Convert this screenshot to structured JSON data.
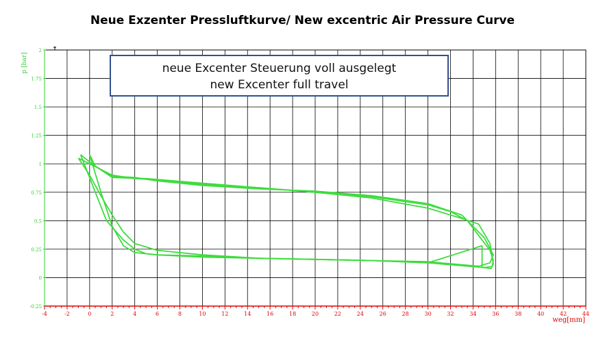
{
  "title": "Neue Exzenter Pressluftkurve/ New excentric Air Pressure Curve",
  "annotation": {
    "line1": "neue Excenter Steuerung  voll ausgelegt",
    "line2": "new Excenter full travel"
  },
  "colors": {
    "curve": "#3ddc3d",
    "axis": "#e00000",
    "ylabel": "#33cc33",
    "grid": "#000000"
  },
  "chart_data": {
    "type": "line",
    "title": "Neue Exzenter Pressluftkurve/ New excentric Air Pressure Curve",
    "xlabel": "weg[mm]",
    "ylabel": "p [bar]",
    "xlim": [
      -4,
      44
    ],
    "ylim": [
      -0.25,
      2
    ],
    "xticks": [
      "-4",
      "-2",
      "0",
      "2",
      "4",
      "6",
      "8",
      "10",
      "12",
      "14",
      "16",
      "18",
      "20",
      "22",
      "24",
      "26",
      "28",
      "30",
      "32",
      "34",
      "36",
      "38",
      "40",
      "42",
      "44"
    ],
    "yticks": [
      "-0.25",
      "0",
      "0.25",
      "0.5",
      "0.75",
      "1",
      "1.25",
      "1.5",
      "1.75",
      "2"
    ],
    "grid": true,
    "series": [
      {
        "x": [
          -1,
          0,
          1,
          2,
          4,
          6,
          10,
          15,
          20,
          25,
          30,
          32,
          33.5,
          34.8,
          35.5,
          35.8,
          35.7,
          35.2,
          34.8,
          30,
          25,
          20,
          15,
          10,
          6,
          4,
          3,
          2,
          1,
          0,
          -1
        ],
        "y": [
          1.05,
          1.0,
          0.95,
          0.9,
          0.87,
          0.86,
          0.82,
          0.79,
          0.75,
          0.71,
          0.64,
          0.58,
          0.5,
          0.33,
          0.24,
          0.15,
          0.1,
          0.09,
          0.09,
          0.13,
          0.15,
          0.16,
          0.17,
          0.2,
          0.24,
          0.3,
          0.4,
          0.55,
          0.72,
          0.9,
          1.05
        ]
      },
      {
        "x": [
          -0.8,
          0.2,
          2,
          5,
          10,
          15,
          20,
          25,
          30,
          33,
          34.5,
          35.5,
          35.8,
          35.6,
          34.8,
          34.8,
          30,
          25,
          20,
          15,
          10,
          6,
          5,
          4,
          3,
          1.5,
          0.5,
          -0.8
        ],
        "y": [
          1.08,
          1.0,
          0.88,
          0.87,
          0.83,
          0.79,
          0.75,
          0.7,
          0.61,
          0.52,
          0.47,
          0.3,
          0.12,
          0.08,
          0.09,
          0.28,
          0.13,
          0.15,
          0.16,
          0.17,
          0.19,
          0.2,
          0.21,
          0.25,
          0.33,
          0.5,
          0.75,
          1.08
        ]
      },
      {
        "x": [
          0,
          0.5,
          2,
          4,
          6,
          10,
          15,
          20,
          25,
          30,
          33,
          35,
          35.8,
          35.5,
          34.5,
          30,
          25,
          20,
          15,
          10,
          8,
          6,
          4,
          3,
          2,
          1,
          0
        ],
        "y": [
          1.08,
          0.98,
          0.89,
          0.88,
          0.85,
          0.81,
          0.78,
          0.76,
          0.72,
          0.65,
          0.55,
          0.35,
          0.2,
          0.13,
          0.1,
          0.14,
          0.15,
          0.16,
          0.17,
          0.18,
          0.19,
          0.2,
          0.22,
          0.28,
          0.45,
          0.75,
          1.08
        ]
      }
    ]
  }
}
